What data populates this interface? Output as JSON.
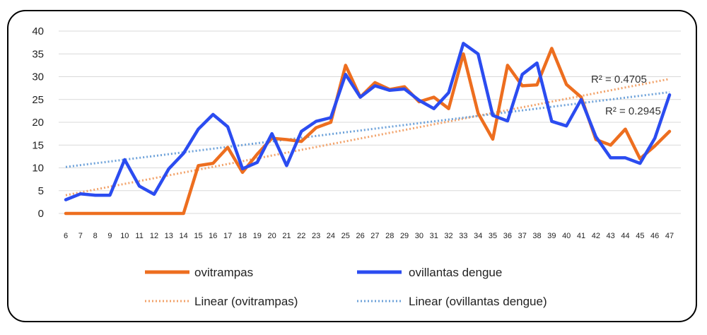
{
  "chart_data": {
    "type": "line",
    "title": "",
    "xlabel": "",
    "ylabel": "",
    "ylim": [
      0,
      40
    ],
    "yticks": [
      0,
      5,
      10,
      15,
      20,
      25,
      30,
      35,
      40
    ],
    "grid": true,
    "legend_position": "bottom",
    "x": [
      6,
      7,
      8,
      9,
      10,
      11,
      12,
      13,
      14,
      15,
      16,
      17,
      18,
      19,
      20,
      21,
      22,
      23,
      24,
      25,
      26,
      27,
      28,
      29,
      30,
      31,
      32,
      33,
      34,
      35,
      36,
      37,
      38,
      39,
      40,
      41,
      42,
      43,
      44,
      45,
      46,
      47
    ],
    "series": [
      {
        "name": "ovitrampas",
        "color": "#ED6E1F",
        "values": [
          0,
          0,
          0,
          0,
          0,
          0,
          0,
          0,
          0,
          10.5,
          11,
          14.5,
          9,
          13,
          16.5,
          16.2,
          15.8,
          18.8,
          20,
          32.5,
          25.5,
          28.7,
          27.2,
          27.8,
          24.5,
          25.5,
          23,
          35,
          22,
          16.3,
          32.5,
          28,
          28.2,
          36.2,
          28.3,
          25.5,
          16.2,
          15,
          18.5,
          12,
          14.8,
          18
        ]
      },
      {
        "name": "ovillantas dengue",
        "color": "#2B4CF0",
        "values": [
          3,
          4.3,
          4,
          4,
          11.8,
          6,
          4.2,
          9.8,
          13.2,
          18.5,
          21.7,
          19,
          9.8,
          11.2,
          17.5,
          10.5,
          18,
          20.2,
          21,
          30.5,
          25.5,
          28,
          27,
          27.3,
          24.8,
          23,
          26.5,
          37.3,
          35,
          21.5,
          20.3,
          30.5,
          33,
          20.2,
          19.2,
          25,
          16.8,
          12.2,
          12.2,
          11,
          16.5,
          26
        ]
      }
    ],
    "trendlines": [
      {
        "name": "Linear (ovitrampas)",
        "color": "#F2A36B",
        "start": [
          6,
          4
        ],
        "end": [
          47,
          29.5
        ],
        "r2_label": "R² = 0.4705"
      },
      {
        "name": "Linear (ovillantas dengue)",
        "color": "#6FA3DA",
        "start": [
          6,
          10.2
        ],
        "end": [
          47,
          26.6
        ],
        "r2_label": "R² = 0.2945"
      }
    ]
  }
}
